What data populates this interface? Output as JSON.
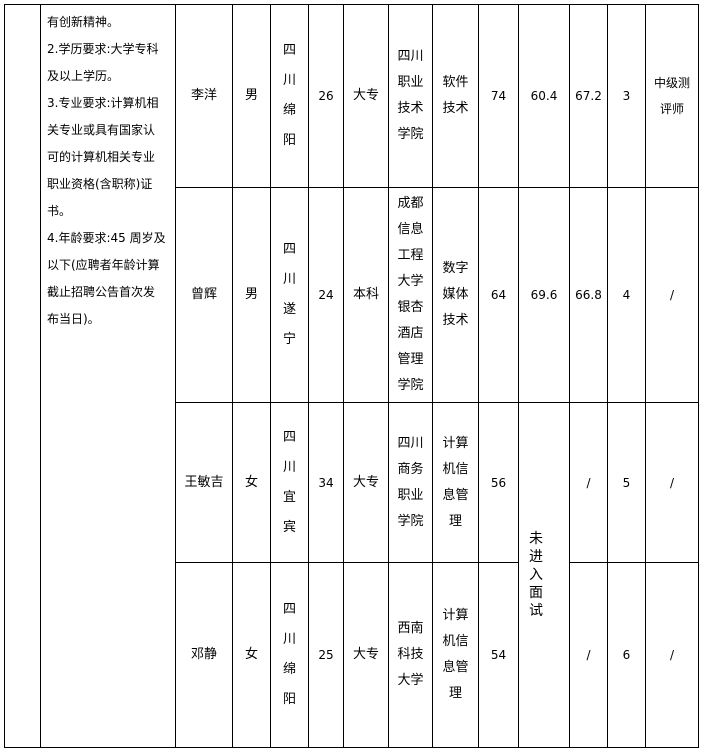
{
  "requirements_text": "有创新精神。2.学历要求:大学专科及以上学历。3.专业要求:计算机相关专业或具有国家认可的计算机相关专业职业资格(含职称)证书。4.年龄要求:45 周岁及以下(应聘者年龄计算截止招聘公告首次发布当日)。",
  "requirements_lines": [
    "有创新精神。",
    "2.学历要求:大学专科",
    "及以上学历。",
    "3.专业要求:计算机相",
    "关专业或具有国家认",
    "可的计算机相关专业",
    "职业资格(含职称)证",
    "书。",
    "4.年龄要求:45 周岁及",
    "以下(应聘者年龄计算",
    "截止招聘公告首次发",
    "布当日)。"
  ],
  "not_interviewed": "未进入面试",
  "rows": [
    {
      "name": "李洋",
      "gender": "男",
      "hometown": "四川绵阳",
      "age": "26",
      "education": "大专",
      "school": "四川职业技术学院",
      "major": "软件技术",
      "score1": "74",
      "score2": "60.4",
      "total": "67.2",
      "rank": "3",
      "title": "中级测评师"
    },
    {
      "name": "曾辉",
      "gender": "男",
      "hometown": "四川遂宁",
      "age": "24",
      "education": "本科",
      "school": "成都信息工程大学银杏酒店管理学院",
      "major": "数字媒体技术",
      "score1": "64",
      "score2": "69.6",
      "total": "66.8",
      "rank": "4",
      "title": "/"
    },
    {
      "name": "王敏吉",
      "gender": "女",
      "hometown": "四川宜宾",
      "age": "34",
      "education": "大专",
      "school": "四川商务职业学院",
      "major": "计算机信息管理",
      "score1": "56",
      "total": "/",
      "rank": "5",
      "title": "/"
    },
    {
      "name": "邓静",
      "gender": "女",
      "hometown": "四川绵阳",
      "age": "25",
      "education": "大专",
      "school": "西南科技大学",
      "major": "计算机信息管理",
      "score1": "54",
      "total": "/",
      "rank": "6",
      "title": "/"
    }
  ]
}
